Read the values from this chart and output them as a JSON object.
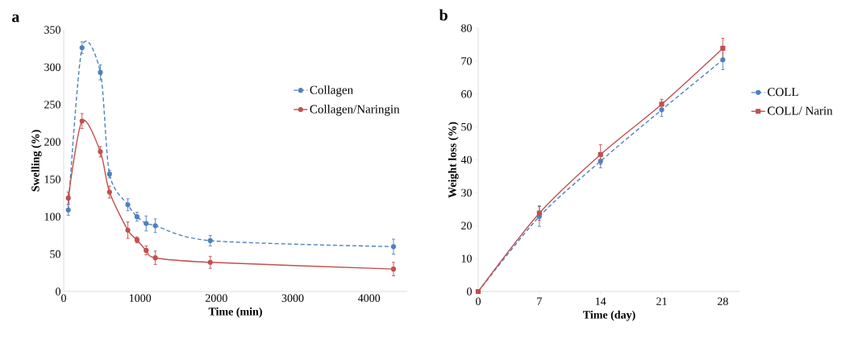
{
  "chart_data": [
    {
      "type": "line",
      "title": "a",
      "xlabel": "Time (min)",
      "ylabel": "Swelling (%)",
      "xlim": [
        0,
        4500
      ],
      "ylim": [
        0,
        350
      ],
      "xticks": [
        0,
        1000,
        2000,
        3000,
        4000
      ],
      "yticks": [
        0,
        50,
        100,
        150,
        200,
        250,
        300,
        350
      ],
      "legend": "top right",
      "x": [
        60,
        240,
        480,
        600,
        840,
        960,
        1080,
        1200,
        1920,
        4320
      ],
      "series": [
        {
          "name": "Collagen",
          "color": "#4f81bd",
          "marker": "circle",
          "line_style": "dashed",
          "values": [
            109,
            326,
            293,
            157,
            116,
            100,
            91,
            88,
            68,
            60
          ],
          "errors": [
            7,
            8,
            10,
            5,
            8,
            6,
            10,
            9,
            7,
            10
          ]
        },
        {
          "name": "Collagen/Naringin",
          "color": "#c0504d",
          "marker": "circle",
          "line_style": "solid",
          "values": [
            125,
            228,
            187,
            133,
            82,
            69,
            55,
            45,
            39,
            30
          ],
          "errors": [
            8,
            10,
            7,
            8,
            11,
            4,
            6,
            9,
            8,
            9
          ]
        }
      ]
    },
    {
      "type": "line",
      "title": "b",
      "xlabel": "Time (day)",
      "ylabel": "Weight loss (%)",
      "xlim": [
        0,
        30
      ],
      "ylim": [
        0,
        80
      ],
      "xticks": [
        0,
        7,
        14,
        21,
        28
      ],
      "yticks": [
        0,
        10,
        20,
        30,
        40,
        50,
        60,
        70,
        80
      ],
      "legend": "right",
      "x": [
        0,
        7,
        14,
        21,
        28
      ],
      "series": [
        {
          "name": "COLL",
          "color": "#4f81bd",
          "marker": "circle",
          "line_style": "dashed",
          "values": [
            0,
            22.8,
            39.6,
            55.2,
            70.4
          ],
          "errors": [
            null,
            3,
            2,
            2,
            3
          ]
        },
        {
          "name": "COLL/ Narin",
          "color": "#c0504d",
          "marker": "square",
          "line_style": "solid",
          "values": [
            0,
            23.8,
            41.6,
            56.9,
            73.9
          ],
          "errors": [
            null,
            2.2,
            3,
            1.5,
            3
          ]
        }
      ]
    }
  ]
}
